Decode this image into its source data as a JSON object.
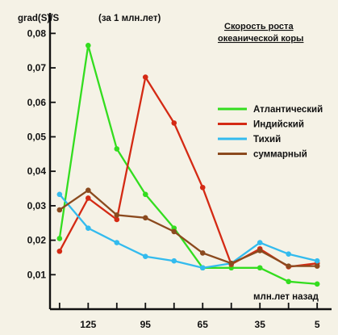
{
  "chart_data": {
    "type": "line",
    "title_lines": [
      "Скорость роста",
      "океанической коры"
    ],
    "ylabel": "grad(S)/S",
    "ylabel_note": "(за 1 млн.лет)",
    "xlabel": "млн.лет назад",
    "x_reversed": true,
    "xlim": [
      145,
      0
    ],
    "ylim": [
      0.0,
      0.085
    ],
    "yticks": [
      0.01,
      0.02,
      0.03,
      0.04,
      0.05,
      0.06,
      0.07,
      0.08
    ],
    "ytick_labels": [
      "0,01",
      "0,02",
      "0,03",
      "0,04",
      "0,05",
      "0,06",
      "0,07",
      "0,08"
    ],
    "xticks_labeled": [
      125,
      95,
      65,
      35,
      5
    ],
    "xtick_labels": [
      "125",
      "95",
      "65",
      "35",
      "5"
    ],
    "xticks_minor": [
      140,
      110,
      80,
      50,
      20
    ],
    "grid": false,
    "legend_position": "right",
    "series": [
      {
        "name": "Атлантический",
        "color": "#33dd1f",
        "x": [
          140,
          125,
          110,
          95,
          80,
          65,
          50,
          35,
          20,
          5
        ],
        "y": [
          0.0205,
          0.0765,
          0.0465,
          0.0333,
          0.0235,
          0.012,
          0.012,
          0.012,
          0.008,
          0.0073
        ]
      },
      {
        "name": "Индийский",
        "color": "#d42a14",
        "x": [
          140,
          125,
          110,
          95,
          80,
          65,
          50,
          35,
          20,
          5
        ],
        "y": [
          0.0168,
          0.0322,
          0.026,
          0.0673,
          0.054,
          0.0353,
          0.013,
          0.0175,
          0.0123,
          0.0133
        ]
      },
      {
        "name": "Тихий",
        "color": "#33bbee",
        "x": [
          140,
          125,
          110,
          95,
          80,
          65,
          50,
          35,
          20,
          5
        ],
        "y": [
          0.0333,
          0.0235,
          0.0193,
          0.0153,
          0.014,
          0.012,
          0.0133,
          0.0193,
          0.016,
          0.014
        ]
      },
      {
        "name": "суммарный",
        "color": "#8b4a1e",
        "x": [
          140,
          125,
          110,
          95,
          80,
          65,
          50,
          35,
          20,
          5
        ],
        "y": [
          0.0288,
          0.0345,
          0.0273,
          0.0265,
          0.0225,
          0.0163,
          0.0133,
          0.017,
          0.0125,
          0.0125
        ]
      }
    ]
  }
}
